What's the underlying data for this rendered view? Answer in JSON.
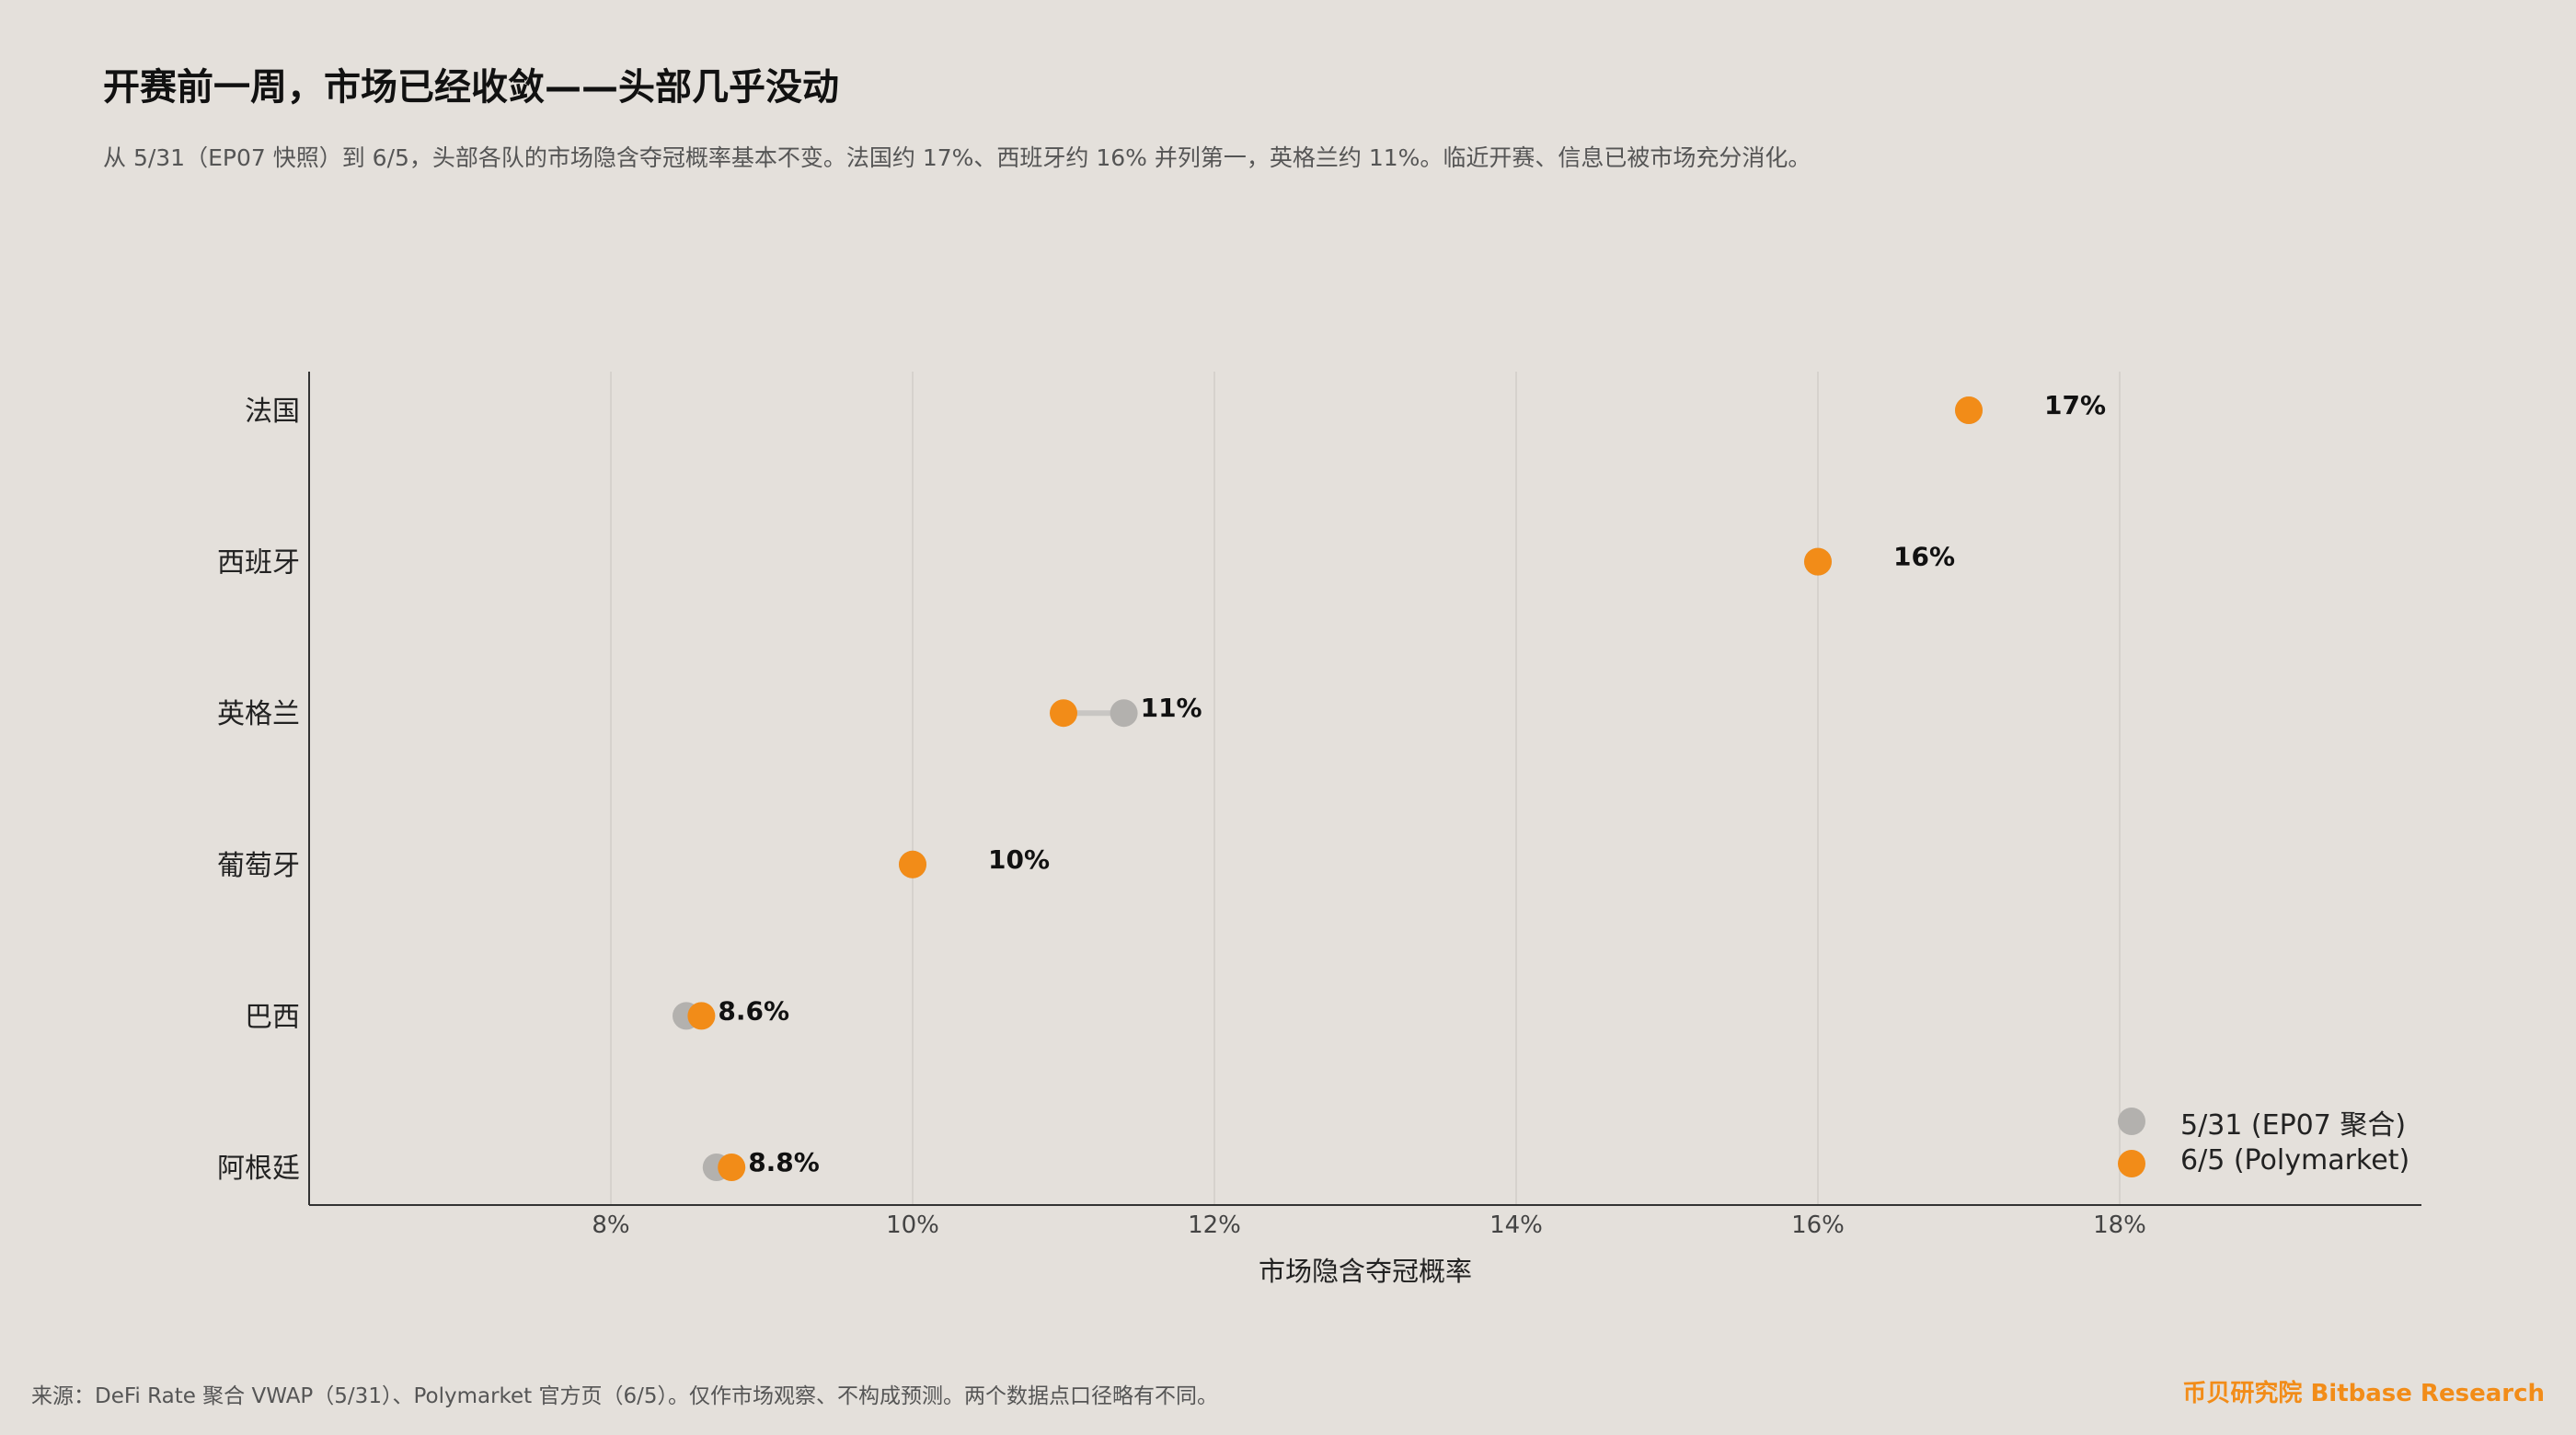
{
  "header": {
    "title": "开赛前一周，市场已经收敛——头部几乎没动",
    "subtitle": "从 5/31（EP07 快照）到 6/5，头部各队的市场隐含夺冠概率基本不变。法国约 17%、西班牙约 16% 并列第一，英格兰约 11%。临近开赛、信息已被市场充分消化。"
  },
  "footer": {
    "source": "来源：DeFi Rate 聚合 VWAP（5/31）、Polymarket 官方页（6/5）。仅作市场观察、不构成预测。两个数据点口径略有不同。",
    "brand": "币贝研究院 Bitbase Research"
  },
  "colors": {
    "background": "#E4E0DB",
    "old": "#B3B1AE",
    "new": "#F28C18",
    "connector": "#C8C6C3",
    "grid": "#D6D2CD",
    "axis": "#333333"
  },
  "chart_data": {
    "type": "dumbbell",
    "xlabel": "市场隐含夺冠概率",
    "xlim": [
      6,
      20
    ],
    "xticks": [
      8,
      10,
      12,
      14,
      16,
      18
    ],
    "xtick_labels": [
      "8%",
      "10%",
      "12%",
      "14%",
      "16%",
      "18%"
    ],
    "grid": "vertical",
    "legend_position": "bottom-right",
    "categories": [
      "法国",
      "西班牙",
      "英格兰",
      "葡萄牙",
      "巴西",
      "阿根廷"
    ],
    "series": [
      {
        "name": "5/31 (EP07 聚合)",
        "values": [
          17.0,
          16.0,
          11.4,
          10.0,
          8.5,
          8.7
        ]
      },
      {
        "name": "6/5 (Polymarket)",
        "values": [
          17.0,
          16.0,
          11.0,
          10.0,
          8.6,
          8.8
        ]
      }
    ],
    "value_labels": [
      "17%",
      "16%",
      "11%",
      "10%",
      "8.6%",
      "8.8%"
    ]
  }
}
